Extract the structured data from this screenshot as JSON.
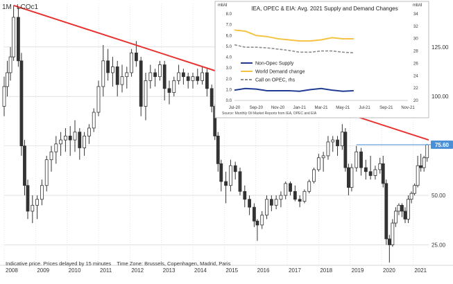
{
  "main_chart": {
    "interval": "1M",
    "symbol": "LCOc1",
    "price_tag": "75.60",
    "footer_note": "Indicative price. Prices delayed by 15 minutes    Time Zone: Brussels, Copenhagen, Madrid, Paris",
    "colors": {
      "trendline": "#e8322f",
      "up": "#3a3a3a",
      "down": "#3a3a3a",
      "tag_bg": "#4a90d9",
      "grid": "#cfcfcf"
    },
    "chart_data": {
      "type": "candlestick",
      "x_tick_labels": [
        "2008",
        "2009",
        "2010",
        "2011",
        "2012",
        "2013",
        "2014",
        "2015",
        "2016",
        "2017",
        "2018",
        "2019",
        "2020",
        "2021"
      ],
      "y_tick_labels": [
        "25.00",
        "50.00",
        "75.00",
        "100.00",
        "125.00"
      ],
      "ylim": [
        15,
        147
      ],
      "xlim": [
        2008.0,
        2021.5
      ],
      "trendline": {
        "from": [
          2008.3,
          146
        ],
        "to": [
          2021.5,
          78
        ]
      },
      "ohlc": [
        [
          2008.0,
          95,
          110,
          90,
          105
        ],
        [
          2008.1,
          105,
          118,
          100,
          112
        ],
        [
          2008.2,
          112,
          125,
          108,
          120
        ],
        [
          2008.3,
          120,
          146,
          118,
          140
        ],
        [
          2008.45,
          140,
          145,
          115,
          118
        ],
        [
          2008.55,
          118,
          122,
          70,
          75
        ],
        [
          2008.65,
          75,
          78,
          50,
          55
        ],
        [
          2008.75,
          55,
          58,
          38,
          42
        ],
        [
          2008.9,
          42,
          50,
          36,
          45
        ],
        [
          2009.05,
          45,
          50,
          38,
          48
        ],
        [
          2009.2,
          48,
          58,
          45,
          55
        ],
        [
          2009.35,
          55,
          70,
          52,
          68
        ],
        [
          2009.5,
          68,
          75,
          62,
          72
        ],
        [
          2009.65,
          72,
          80,
          66,
          76
        ],
        [
          2009.8,
          76,
          82,
          70,
          78
        ],
        [
          2009.95,
          78,
          84,
          72,
          80
        ],
        [
          2010.1,
          80,
          85,
          70,
          78
        ],
        [
          2010.25,
          78,
          88,
          72,
          82
        ],
        [
          2010.4,
          82,
          84,
          68,
          74
        ],
        [
          2010.55,
          74,
          82,
          70,
          80
        ],
        [
          2010.7,
          80,
          86,
          76,
          84
        ],
        [
          2010.85,
          84,
          94,
          82,
          92
        ],
        [
          2011.0,
          92,
          108,
          90,
          105
        ],
        [
          2011.15,
          105,
          126,
          100,
          118
        ],
        [
          2011.3,
          118,
          124,
          108,
          112
        ],
        [
          2011.45,
          112,
          120,
          105,
          115
        ],
        [
          2011.6,
          115,
          118,
          100,
          106
        ],
        [
          2011.75,
          106,
          116,
          102,
          110
        ],
        [
          2011.9,
          110,
          115,
          104,
          112
        ],
        [
          2012.05,
          112,
          124,
          110,
          122
        ],
        [
          2012.2,
          122,
          128,
          115,
          118
        ],
        [
          2012.35,
          118,
          120,
          90,
          95
        ],
        [
          2012.5,
          95,
          112,
          88,
          108
        ],
        [
          2012.65,
          108,
          116,
          104,
          112
        ],
        [
          2012.8,
          112,
          114,
          105,
          110
        ],
        [
          2012.95,
          110,
          118,
          108,
          116
        ],
        [
          2013.1,
          116,
          118,
          98,
          104
        ],
        [
          2013.25,
          104,
          108,
          96,
          102
        ],
        [
          2013.4,
          102,
          110,
          100,
          108
        ],
        [
          2013.55,
          108,
          116,
          106,
          112
        ],
        [
          2013.7,
          112,
          114,
          106,
          110
        ],
        [
          2013.85,
          110,
          112,
          104,
          108
        ],
        [
          2014.0,
          108,
          112,
          104,
          110
        ],
        [
          2014.15,
          110,
          114,
          106,
          108
        ],
        [
          2014.3,
          108,
          115,
          106,
          112
        ],
        [
          2014.45,
          112,
          114,
          100,
          104
        ],
        [
          2014.6,
          104,
          106,
          92,
          95
        ],
        [
          2014.7,
          95,
          96,
          78,
          80
        ],
        [
          2014.8,
          80,
          82,
          62,
          66
        ],
        [
          2014.9,
          66,
          68,
          52,
          57
        ],
        [
          2015.05,
          57,
          62,
          46,
          55
        ],
        [
          2015.2,
          55,
          68,
          52,
          65
        ],
        [
          2015.35,
          65,
          67,
          58,
          62
        ],
        [
          2015.5,
          62,
          64,
          50,
          52
        ],
        [
          2015.65,
          52,
          55,
          44,
          48
        ],
        [
          2015.8,
          48,
          50,
          40,
          44
        ],
        [
          2015.95,
          44,
          46,
          34,
          37
        ],
        [
          2016.05,
          37,
          38,
          27,
          35
        ],
        [
          2016.2,
          35,
          42,
          33,
          40
        ],
        [
          2016.35,
          40,
          50,
          38,
          48
        ],
        [
          2016.5,
          48,
          50,
          42,
          45
        ],
        [
          2016.65,
          45,
          50,
          43,
          48
        ],
        [
          2016.8,
          48,
          52,
          44,
          50
        ],
        [
          2016.95,
          50,
          57,
          48,
          56
        ],
        [
          2017.1,
          56,
          57,
          50,
          52
        ],
        [
          2017.25,
          52,
          55,
          47,
          48
        ],
        [
          2017.4,
          48,
          50,
          44,
          47
        ],
        [
          2017.55,
          47,
          53,
          46,
          52
        ],
        [
          2017.7,
          52,
          58,
          51,
          57
        ],
        [
          2017.85,
          57,
          64,
          56,
          63
        ],
        [
          2018.0,
          63,
          71,
          62,
          69
        ],
        [
          2018.15,
          69,
          72,
          62,
          70
        ],
        [
          2018.3,
          70,
          80,
          68,
          77
        ],
        [
          2018.45,
          77,
          80,
          72,
          78
        ],
        [
          2018.6,
          78,
          80,
          70,
          75
        ],
        [
          2018.75,
          75,
          86,
          73,
          82
        ],
        [
          2018.85,
          82,
          84,
          62,
          64
        ],
        [
          2018.95,
          64,
          66,
          50,
          54
        ],
        [
          2019.05,
          54,
          66,
          52,
          64
        ],
        [
          2019.2,
          64,
          75,
          62,
          72
        ],
        [
          2019.35,
          72,
          74,
          60,
          64
        ],
        [
          2019.5,
          64,
          68,
          58,
          62
        ],
        [
          2019.65,
          62,
          70,
          58,
          60
        ],
        [
          2019.8,
          60,
          65,
          58,
          63
        ],
        [
          2019.95,
          63,
          69,
          61,
          66
        ],
        [
          2020.05,
          66,
          70,
          54,
          56
        ],
        [
          2020.15,
          56,
          58,
          25,
          28
        ],
        [
          2020.25,
          28,
          30,
          16,
          25
        ],
        [
          2020.35,
          25,
          38,
          24,
          36
        ],
        [
          2020.45,
          36,
          44,
          34,
          42
        ],
        [
          2020.55,
          42,
          46,
          40,
          45
        ],
        [
          2020.65,
          45,
          46,
          39,
          42
        ],
        [
          2020.75,
          42,
          44,
          36,
          38
        ],
        [
          2020.85,
          38,
          50,
          36,
          48
        ],
        [
          2020.95,
          48,
          52,
          46,
          51
        ],
        [
          2021.05,
          51,
          56,
          50,
          55
        ],
        [
          2021.15,
          55,
          70,
          54,
          65
        ],
        [
          2021.25,
          65,
          71,
          62,
          64
        ],
        [
          2021.35,
          64,
          70,
          62,
          69
        ],
        [
          2021.45,
          69,
          76,
          67,
          75.6
        ]
      ]
    }
  },
  "inset_chart": {
    "title": "IEA, OPEC & EIA: Avg. 2021 Supply and Demand Changes",
    "unit_left": "mb/d",
    "unit_right": "mb/d",
    "source": "Source: Monthly Oil Market Reports from IEA, OPEC and EIA",
    "chart_data": {
      "type": "line",
      "x_tick_labels": [
        "Jul-20",
        "Sep-20",
        "Nov-20",
        "Jan-21",
        "Mar-21",
        "May-21",
        "Jul-21",
        "Sep-21",
        "Nov-21"
      ],
      "y_left_ticks": [
        "0.0",
        "1.0",
        "2.0",
        "3.0",
        "4.0",
        "5.0",
        "6.0",
        "7.0",
        "8.0"
      ],
      "y_right_ticks": [
        "20",
        "22",
        "24",
        "26",
        "28",
        "30",
        "32",
        "34"
      ],
      "ylim_left": [
        0,
        8
      ],
      "ylim_right": [
        20,
        34
      ],
      "series": [
        {
          "name": "Non-Opec Supply",
          "color": "#1f3a93",
          "axis": "left",
          "x": [
            0,
            1,
            2,
            3,
            4,
            5,
            6,
            7,
            8,
            9,
            10,
            11
          ],
          "values": [
            0.95,
            1.1,
            1.05,
            0.9,
            0.9,
            0.9,
            0.85,
            1.0,
            1.1,
            0.95,
            0.85,
            0.9
          ]
        },
        {
          "name": "World Demand change",
          "color": "#f5c242",
          "axis": "left",
          "x": [
            0,
            1,
            2,
            3,
            4,
            5,
            6,
            7,
            8,
            9,
            10,
            11
          ],
          "values": [
            6.5,
            6.4,
            6.0,
            5.9,
            5.7,
            5.6,
            5.5,
            5.5,
            5.6,
            5.8,
            5.7,
            5.7
          ]
        },
        {
          "name": "Call on OPEC, rhs",
          "color": "#8c8c8c",
          "axis": "right",
          "x": [
            0,
            1,
            2,
            3,
            4,
            5,
            6,
            7,
            8,
            9,
            10,
            11
          ],
          "values": [
            29.0,
            28.6,
            28.6,
            28.5,
            28.3,
            28.1,
            27.8,
            27.8,
            28.0,
            28.0,
            27.8,
            27.7
          ]
        }
      ]
    }
  }
}
